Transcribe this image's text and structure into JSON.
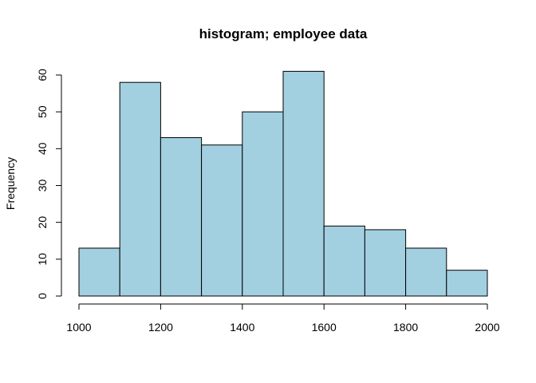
{
  "chart_data": {
    "type": "bar",
    "title": "histogram; employee data",
    "xlabel": "",
    "ylabel": "Frequency",
    "bin_edges": [
      1000,
      1100,
      1200,
      1300,
      1400,
      1500,
      1600,
      1700,
      1800,
      1900,
      2000
    ],
    "values": [
      13,
      58,
      43,
      41,
      50,
      61,
      19,
      18,
      13,
      7
    ],
    "xlim": [
      1000,
      2000
    ],
    "ylim": [
      0,
      60
    ],
    "x_ticks": [
      1000,
      1200,
      1400,
      1600,
      1800,
      2000
    ],
    "y_ticks": [
      0,
      10,
      20,
      30,
      40,
      50,
      60
    ],
    "bar_color": "#a2d0e1",
    "grid": false,
    "legend": "none"
  }
}
